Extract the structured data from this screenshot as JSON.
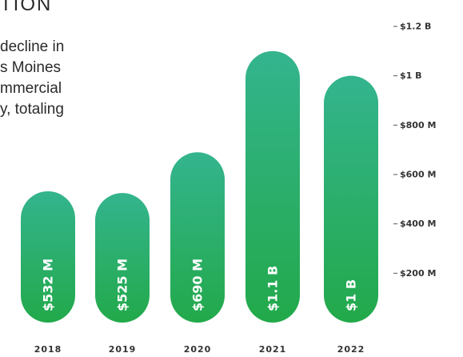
{
  "heading_fragment": "TION",
  "paragraph_lines": [
    "decline in",
    "s Moines",
    "mmercial",
    "y, totaling"
  ],
  "colors": {
    "bar_top": "#34b48e",
    "bar_bottom": "#22a94a",
    "text": "#2a2a2a"
  },
  "chart_data": {
    "type": "bar",
    "categories": [
      "2018",
      "2019",
      "2020",
      "2021",
      "2022"
    ],
    "values": [
      532,
      525,
      690,
      1100,
      1000
    ],
    "value_labels": [
      "$532 M",
      "$525 M",
      "$690 M",
      "$1.1 B",
      "$1 B"
    ],
    "ylim": [
      0,
      1200
    ],
    "yticks": [
      {
        "value": 200,
        "label": "$200 M"
      },
      {
        "value": 400,
        "label": "$400 M"
      },
      {
        "value": 600,
        "label": "$600 M"
      },
      {
        "value": 800,
        "label": "$800 M"
      },
      {
        "value": 1000,
        "label": "$1 B"
      },
      {
        "value": 1200,
        "label": "$1.2 B"
      }
    ],
    "ylabel": "",
    "xlabel": "",
    "grid": false,
    "y_axis_position": "right"
  }
}
